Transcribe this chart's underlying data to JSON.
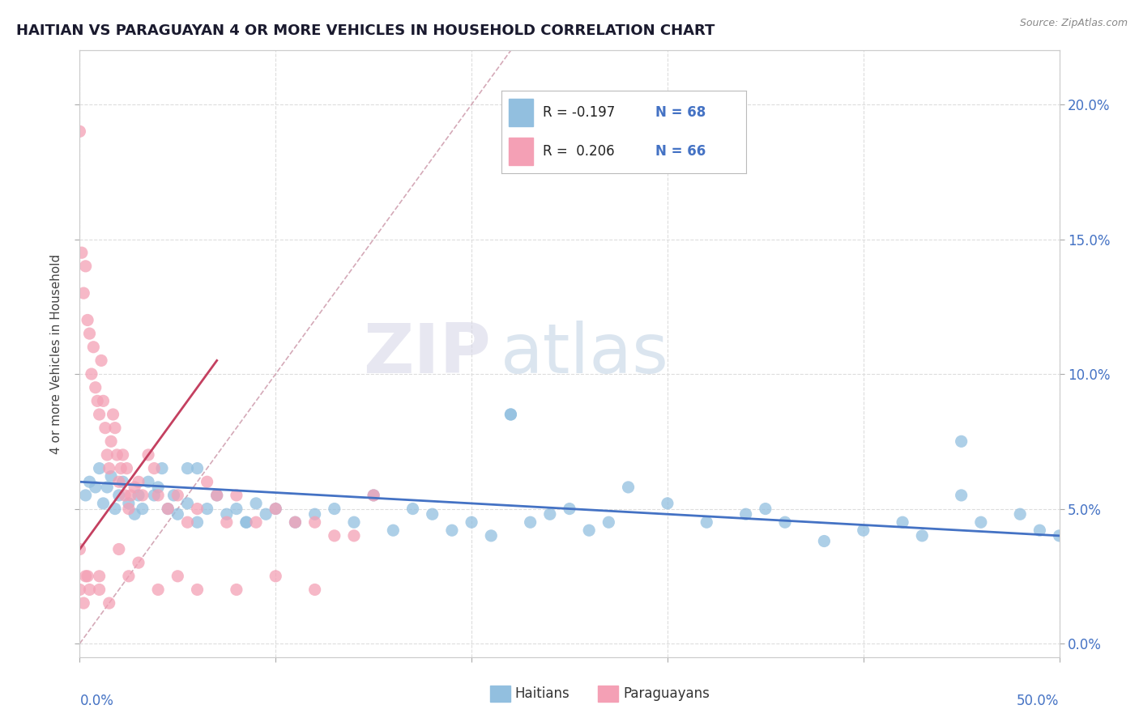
{
  "title": "HAITIAN VS PARAGUAYAN 4 OR MORE VEHICLES IN HOUSEHOLD CORRELATION CHART",
  "source": "Source: ZipAtlas.com",
  "ylabel": "4 or more Vehicles in Household",
  "ytick_vals": [
    0.0,
    5.0,
    10.0,
    15.0,
    20.0
  ],
  "xlim": [
    0.0,
    50.0
  ],
  "ylim": [
    -0.5,
    22.0
  ],
  "legend_r1": "R = -0.197",
  "legend_n1": "N = 68",
  "legend_r2": "R =  0.206",
  "legend_n2": "N = 66",
  "color_blue": "#92BFDF",
  "color_pink": "#F4A0B5",
  "line_blue": "#4472C4",
  "line_pink": "#C44060",
  "diagonal_color": "#D0A0B0",
  "haitian_x": [
    0.3,
    0.5,
    0.8,
    1.0,
    1.2,
    1.4,
    1.6,
    1.8,
    2.0,
    2.2,
    2.5,
    2.8,
    3.0,
    3.2,
    3.5,
    3.8,
    4.0,
    4.2,
    4.5,
    4.8,
    5.0,
    5.5,
    6.0,
    6.5,
    7.0,
    7.5,
    8.0,
    8.5,
    9.0,
    9.5,
    10.0,
    11.0,
    12.0,
    13.0,
    14.0,
    15.0,
    16.0,
    17.0,
    18.0,
    19.0,
    20.0,
    21.0,
    22.0,
    23.0,
    24.0,
    25.0,
    26.0,
    27.0,
    28.0,
    30.0,
    32.0,
    34.0,
    35.0,
    36.0,
    38.0,
    40.0,
    42.0,
    43.0,
    45.0,
    46.0,
    48.0,
    49.0,
    50.0,
    22.0,
    45.0,
    8.5,
    6.0,
    5.5
  ],
  "haitian_y": [
    5.5,
    6.0,
    5.8,
    6.5,
    5.2,
    5.8,
    6.2,
    5.0,
    5.5,
    6.0,
    5.2,
    4.8,
    5.5,
    5.0,
    6.0,
    5.5,
    5.8,
    6.5,
    5.0,
    5.5,
    4.8,
    5.2,
    4.5,
    5.0,
    5.5,
    4.8,
    5.0,
    4.5,
    5.2,
    4.8,
    5.0,
    4.5,
    4.8,
    5.0,
    4.5,
    5.5,
    4.2,
    5.0,
    4.8,
    4.2,
    4.5,
    4.0,
    8.5,
    4.5,
    4.8,
    5.0,
    4.2,
    4.5,
    5.8,
    5.2,
    4.5,
    4.8,
    5.0,
    4.5,
    3.8,
    4.2,
    4.5,
    4.0,
    5.5,
    4.5,
    4.8,
    4.2,
    4.0,
    8.5,
    7.5,
    4.5,
    6.5,
    6.5
  ],
  "paraguayan_x": [
    0.0,
    0.0,
    0.1,
    0.2,
    0.3,
    0.3,
    0.4,
    0.5,
    0.5,
    0.6,
    0.7,
    0.8,
    0.9,
    1.0,
    1.0,
    1.1,
    1.2,
    1.3,
    1.4,
    1.5,
    1.6,
    1.7,
    1.8,
    1.9,
    2.0,
    2.1,
    2.2,
    2.3,
    2.4,
    2.5,
    2.6,
    2.8,
    3.0,
    3.2,
    3.5,
    3.8,
    4.0,
    4.5,
    5.0,
    5.5,
    6.0,
    6.5,
    7.0,
    7.5,
    8.0,
    9.0,
    10.0,
    11.0,
    12.0,
    13.0,
    14.0,
    15.0,
    0.0,
    0.2,
    0.4,
    1.0,
    1.5,
    2.0,
    2.5,
    3.0,
    4.0,
    5.0,
    6.0,
    8.0,
    10.0,
    12.0
  ],
  "paraguayan_y": [
    19.0,
    3.5,
    14.5,
    13.0,
    14.0,
    2.5,
    12.0,
    11.5,
    2.0,
    10.0,
    11.0,
    9.5,
    9.0,
    8.5,
    2.5,
    10.5,
    9.0,
    8.0,
    7.0,
    6.5,
    7.5,
    8.5,
    8.0,
    7.0,
    6.0,
    6.5,
    7.0,
    5.5,
    6.5,
    5.0,
    5.5,
    5.8,
    6.0,
    5.5,
    7.0,
    6.5,
    5.5,
    5.0,
    5.5,
    4.5,
    5.0,
    6.0,
    5.5,
    4.5,
    5.5,
    4.5,
    5.0,
    4.5,
    4.5,
    4.0,
    4.0,
    5.5,
    2.0,
    1.5,
    2.5,
    2.0,
    1.5,
    3.5,
    2.5,
    3.0,
    2.0,
    2.5,
    2.0,
    2.0,
    2.5,
    2.0
  ],
  "blue_line_x0": 0.0,
  "blue_line_x1": 50.0,
  "blue_line_y0": 6.0,
  "blue_line_y1": 4.0,
  "pink_line_x0": 0.0,
  "pink_line_x1": 7.0,
  "pink_line_y0": 3.5,
  "pink_line_y1": 10.5,
  "diag_x0": 0.0,
  "diag_x1": 22.0,
  "diag_y0": 0.0,
  "diag_y1": 22.0
}
